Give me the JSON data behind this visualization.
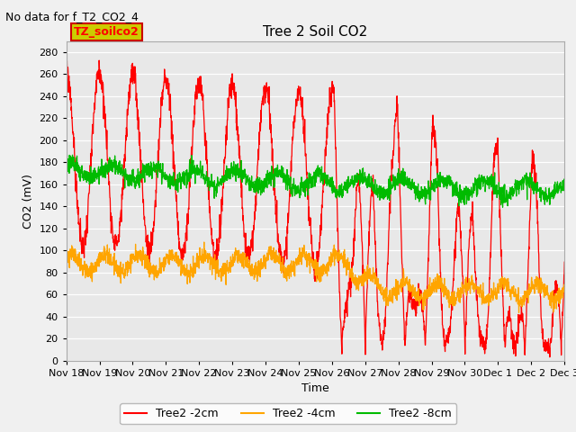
{
  "title": "Tree 2 Soil CO2",
  "suptitle": "No data for f_T2_CO2_4",
  "ylabel": "CO2 (mV)",
  "xlabel": "Time",
  "legend_label": "TZ_soilco2",
  "ylim": [
    0,
    290
  ],
  "yticks": [
    0,
    20,
    40,
    60,
    80,
    100,
    120,
    140,
    160,
    180,
    200,
    220,
    240,
    260,
    280
  ],
  "line_colors": [
    "#ff0000",
    "#ffa500",
    "#00bb00"
  ],
  "line_labels": [
    "Tree2 -2cm",
    "Tree2 -4cm",
    "Tree2 -8cm"
  ],
  "background_color": "#f0f0f0",
  "plot_bg_color": "#e8e8e8",
  "grid_color": "#ffffff",
  "x_tick_labels": [
    "Nov 18",
    "Nov 19",
    "Nov 20",
    "Nov 21",
    "Nov 22",
    "Nov 23",
    "Nov 24",
    "Nov 25",
    "Nov 26",
    "Nov 27",
    "Nov 28",
    "Nov 29",
    "Nov 30",
    "Dec 1",
    "Dec 2",
    "Dec 3"
  ]
}
